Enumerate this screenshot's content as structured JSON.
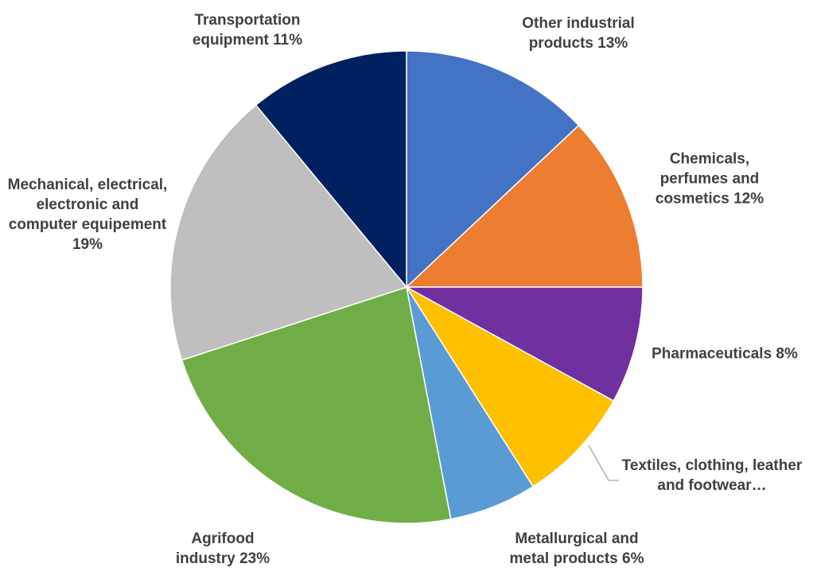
{
  "chart_data": {
    "type": "pie",
    "categories": [
      "Other industrial products 13%",
      "Chemicals, perfumes and cosmetics 12%",
      "Pharmaceuticals 8%",
      "Textiles, clothing, leather and footwear…",
      "Metallurgical and metal products 6%",
      "Agrifood industry 23%",
      "Mechanical, electrical, electronic and computer equipement 19%",
      "Transportation equipment 11%"
    ],
    "values": [
      13,
      12,
      8,
      8,
      6,
      23,
      19,
      11
    ],
    "colors": [
      "#4472c4",
      "#ed7d31",
      "#7030a0",
      "#ffc000",
      "#5b9bd5",
      "#70ad47",
      "#bfbfbf",
      "#002060"
    ]
  }
}
